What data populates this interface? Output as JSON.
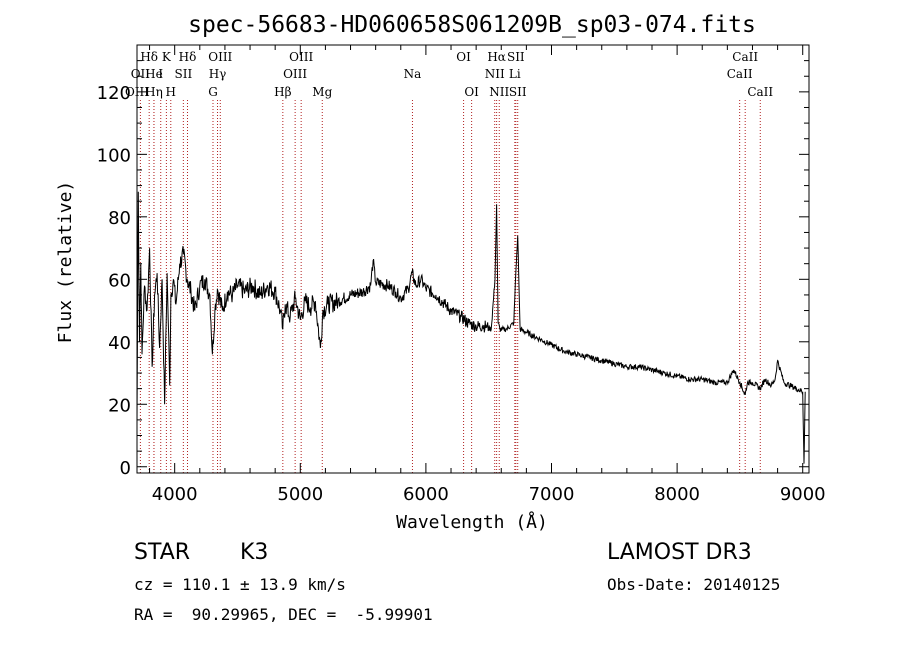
{
  "chart_data": {
    "type": "line",
    "title": "spec-56683-HD060658S061209B_sp03-074.fits",
    "xlabel": "Wavelength (Å)",
    "ylabel": "Flux (relative)",
    "xlim": [
      3700,
      9050
    ],
    "ylim": [
      -2,
      135
    ],
    "x_ticks": [
      4000,
      5000,
      6000,
      7000,
      8000,
      9000
    ],
    "y_ticks": [
      0,
      20,
      40,
      60,
      80,
      100,
      120
    ],
    "x_tick_labels": [
      "4000",
      "5000",
      "6000",
      "7000",
      "8000",
      "9000"
    ],
    "y_tick_labels": [
      "0",
      "20",
      "40",
      "60",
      "80",
      "100",
      "120"
    ],
    "line_color": "#000000",
    "marker_color": "#b22222",
    "series": [
      {
        "name": "flux",
        "x": [
          3700,
          3710,
          3720,
          3730,
          3740,
          3760,
          3780,
          3800,
          3820,
          3840,
          3860,
          3880,
          3900,
          3920,
          3940,
          3960,
          3970,
          3990,
          4010,
          4040,
          4070,
          4100,
          4130,
          4160,
          4200,
          4240,
          4280,
          4300,
          4320,
          4340,
          4380,
          4420,
          4460,
          4500,
          4560,
          4620,
          4680,
          4740,
          4800,
          4840,
          4861,
          4880,
          4920,
          4960,
          5000,
          5040,
          5080,
          5120,
          5160,
          5180,
          5220,
          5300,
          5400,
          5500,
          5560,
          5580,
          5600,
          5700,
          5760,
          5800,
          5860,
          5890,
          5920,
          5960,
          6000,
          6080,
          6150,
          6200,
          6280,
          6340,
          6400,
          6450,
          6480,
          6520,
          6550,
          6563,
          6575,
          6590,
          6640,
          6700,
          6716,
          6731,
          6750,
          6800,
          6900,
          7000,
          7100,
          7200,
          7300,
          7400,
          7500,
          7600,
          7700,
          7800,
          7900,
          8000,
          8100,
          8200,
          8300,
          8400,
          8450,
          8500,
          8542,
          8560,
          8600,
          8662,
          8700,
          8750,
          8780,
          8800,
          8850,
          8900,
          8950,
          9000,
          9010,
          9020
        ],
        "y": [
          14,
          88,
          40,
          65,
          36,
          58,
          50,
          70,
          32,
          55,
          62,
          38,
          60,
          20,
          62,
          26,
          55,
          60,
          52,
          65,
          68,
          60,
          56,
          50,
          58,
          60,
          55,
          36,
          50,
          57,
          50,
          56,
          55,
          58,
          56,
          58,
          55,
          58,
          56,
          50,
          44,
          52,
          48,
          54,
          47,
          53,
          51,
          53,
          38,
          50,
          52,
          53,
          55,
          56,
          58,
          66,
          59,
          58,
          56,
          54,
          57,
          62,
          58,
          60,
          57,
          55,
          52,
          50,
          48,
          46,
          45,
          45,
          45,
          44,
          60,
          84,
          46,
          44,
          44,
          46,
          62,
          74,
          44,
          43,
          41,
          39,
          37,
          36,
          35,
          34,
          33,
          32,
          32,
          31,
          30,
          29,
          28,
          28,
          27,
          27,
          31,
          27,
          23,
          27,
          27,
          25,
          28,
          26,
          28,
          34,
          27,
          26,
          25,
          24,
          1,
          24
        ]
      }
    ],
    "line_markers": [
      {
        "label": "Hδ",
        "wavelength": 3797,
        "row": 0
      },
      {
        "label": "OII",
        "wavelength": 3727,
        "row": 1
      },
      {
        "label": "OIII",
        "wavelength": 3700,
        "row": 2
      },
      {
        "label": "He",
        "wavelength": 3835,
        "row": 1
      },
      {
        "label": "Hη",
        "wavelength": 3835,
        "row": 2
      },
      {
        "label": "K",
        "wavelength": 3934,
        "row": 0
      },
      {
        "label": "I",
        "wavelength": 3889,
        "row": 1
      },
      {
        "label": "H",
        "wavelength": 3969,
        "row": 2
      },
      {
        "label": "Hδ",
        "wavelength": 4102,
        "row": 0
      },
      {
        "label": "SII",
        "wavelength": 4069,
        "row": 1
      },
      {
        "label": "OIII",
        "wavelength": 4363,
        "row": 0
      },
      {
        "label": "Hγ",
        "wavelength": 4341,
        "row": 1
      },
      {
        "label": "G",
        "wavelength": 4305,
        "row": 2
      },
      {
        "label": "Hβ",
        "wavelength": 4861,
        "row": 2
      },
      {
        "label": "OIII",
        "wavelength": 5007,
        "row": 0
      },
      {
        "label": "OIII",
        "wavelength": 4959,
        "row": 1
      },
      {
        "label": "Mg",
        "wavelength": 5175,
        "row": 2
      },
      {
        "label": "Na",
        "wavelength": 5893,
        "row": 1
      },
      {
        "label": "OI",
        "wavelength": 6300,
        "row": 0
      },
      {
        "label": "OI",
        "wavelength": 6364,
        "row": 2
      },
      {
        "label": "Hα",
        "wavelength": 6563,
        "row": 0
      },
      {
        "label": "SII",
        "wavelength": 6716,
        "row": 0
      },
      {
        "label": "NII",
        "wavelength": 6548,
        "row": 1
      },
      {
        "label": "Li",
        "wavelength": 6708,
        "row": 1
      },
      {
        "label": "NII",
        "wavelength": 6584,
        "row": 2
      },
      {
        "label": "SII",
        "wavelength": 6731,
        "row": 2
      },
      {
        "label": "CaII",
        "wavelength": 8542,
        "row": 0
      },
      {
        "label": "CaII",
        "wavelength": 8498,
        "row": 1
      },
      {
        "label": "CaII",
        "wavelength": 8662,
        "row": 2
      }
    ]
  },
  "info": {
    "class_label": "STAR",
    "subclass": "K3",
    "survey": "LAMOST DR3",
    "cz": "cz = 110.1 ± 13.9 km/s",
    "obs_date": "Obs-Date: 20140125",
    "coords": "RA =  90.29965, DEC =  -5.99901"
  }
}
